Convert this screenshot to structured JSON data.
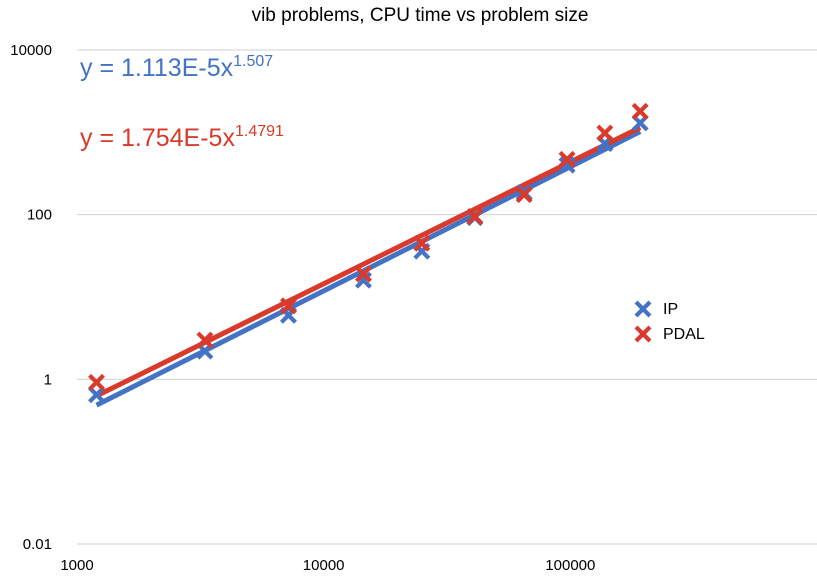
{
  "chart_data": {
    "type": "scatter",
    "title": "vib problems, CPU time vs problem size",
    "xscale": "log",
    "yscale": "log",
    "xlim": [
      1000,
      1000000
    ],
    "ylim": [
      0.01,
      10000
    ],
    "x_ticks": [
      {
        "value": 1000,
        "label": "1000"
      },
      {
        "value": 10000,
        "label": "10000"
      },
      {
        "value": 100000,
        "label": "100000"
      }
    ],
    "y_ticks": [
      {
        "value": 0.01,
        "label": "0.01"
      },
      {
        "value": 1,
        "label": "1"
      },
      {
        "value": 100,
        "label": "100"
      },
      {
        "value": 10000,
        "label": "10000"
      }
    ],
    "grid": true,
    "legend_position": "right",
    "series": [
      {
        "name": "IP",
        "color": "#4472C4",
        "marker": "x",
        "x": [
          1200,
          3300,
          7200,
          14500,
          25000,
          41000,
          65000,
          97000,
          138000,
          192000
        ],
        "y": [
          0.65,
          2.2,
          6.0,
          16,
          36,
          92,
          185,
          400,
          730,
          1300
        ],
        "trendline": {
          "label_prefix": "y = 1.113E-5x",
          "label_exponent": "1.507",
          "coefficient": 1.113e-05,
          "exponent": 1.507,
          "x_range": [
            1200,
            192000
          ]
        }
      },
      {
        "name": "PDAL",
        "color": "#D93A2B",
        "marker": "x",
        "x": [
          1200,
          3300,
          7200,
          14500,
          25000,
          41000,
          65000,
          97000,
          138000,
          192000
        ],
        "y": [
          0.92,
          3.0,
          7.8,
          19,
          45,
          95,
          175,
          470,
          980,
          1800
        ],
        "trendline": {
          "label_prefix": "y = 1.754E-5x",
          "label_exponent": "1.4791",
          "coefficient": 1.754e-05,
          "exponent": 1.4791,
          "x_range": [
            1200,
            192000
          ]
        }
      }
    ]
  }
}
